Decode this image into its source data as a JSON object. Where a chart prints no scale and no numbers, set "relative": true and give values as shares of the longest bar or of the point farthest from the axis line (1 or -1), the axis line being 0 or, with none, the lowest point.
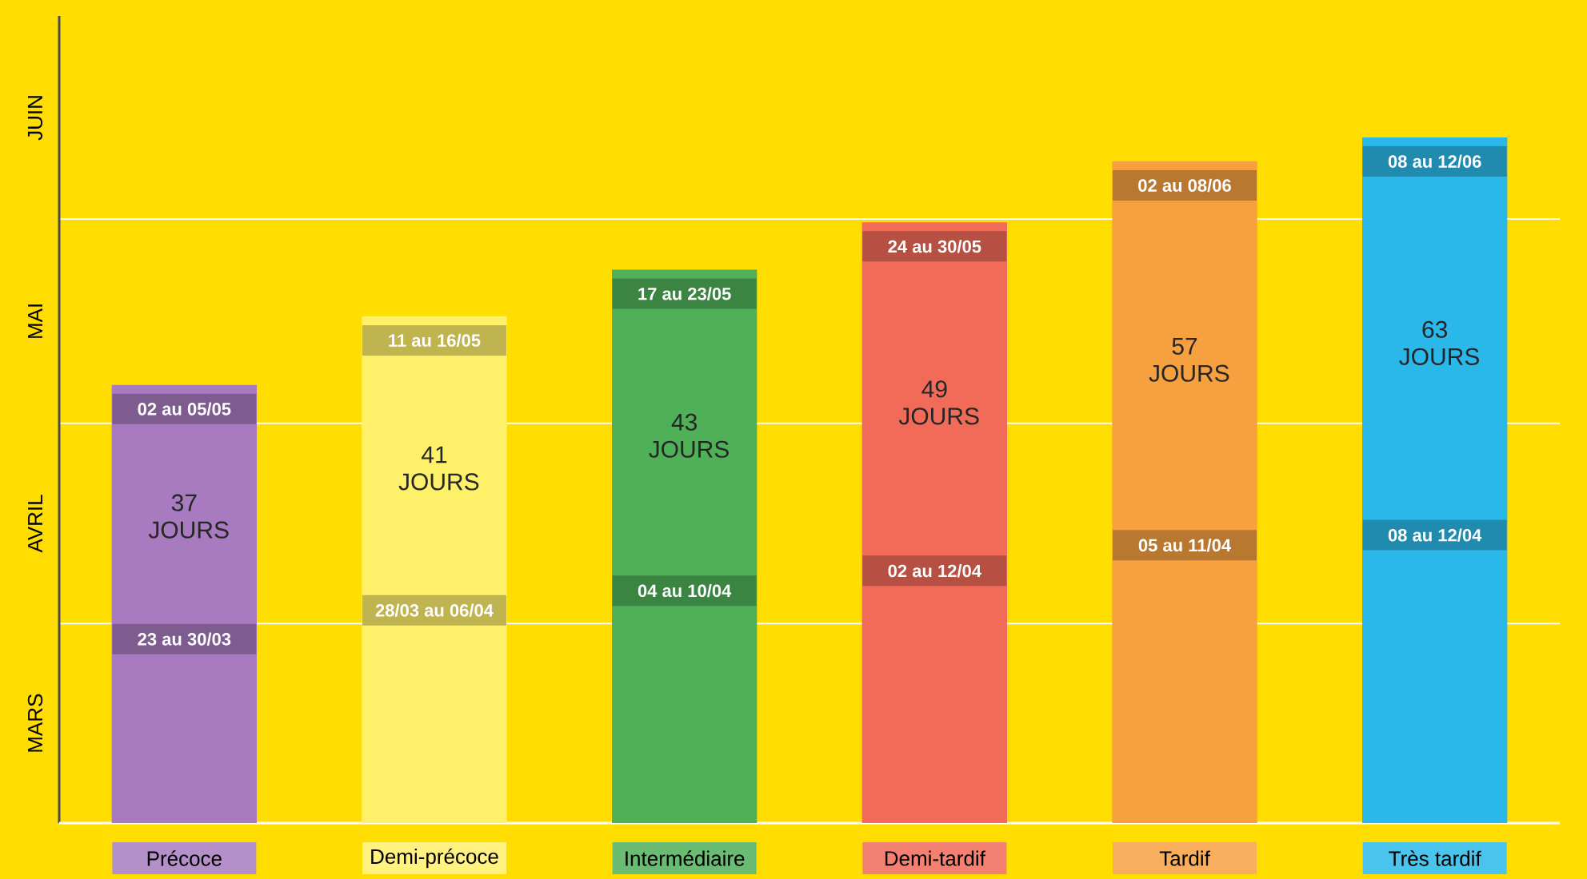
{
  "chart_data": {
    "type": "bar",
    "relative": true,
    "categories": [
      "Précoce",
      "Demi-précoce",
      "Intermédiaire",
      "Demi-tardif",
      "Tardif",
      "Très tardif"
    ],
    "values": [
      0.639,
      0.739,
      0.807,
      0.876,
      0.965,
      1
    ],
    "colors": [
      "#a87bc0",
      "#fff06a",
      "#4fb058",
      "#f26a58",
      "#f7a040",
      "#2ab8ea"
    ],
    "ref_lines": [
      {
        "axis": "y",
        "value": 0.291,
        "color": "#ffffff"
      },
      {
        "axis": "y",
        "value": 0.583,
        "color": "#ffffff"
      },
      {
        "axis": "y",
        "value": 0.881,
        "color": "#ffffff"
      }
    ],
    "annotations": [
      "MARS",
      "AVRIL",
      "MAI",
      "JUIN",
      "02 au 05/05",
      "37 JOURS",
      "23 au 30/03",
      "11 au 16/05",
      "41 JOURS",
      "28/03 au 06/04",
      "17 au 23/05",
      "43 JOURS",
      "04 au 10/04",
      "24 au 30/05",
      "49 JOURS",
      "02 au 12/04",
      "02 au 08/06",
      "57 JOURS",
      "05 au 11/04",
      "08 au 12/06",
      "63 JOURS",
      "08 au 12/04"
    ]
  }
}
